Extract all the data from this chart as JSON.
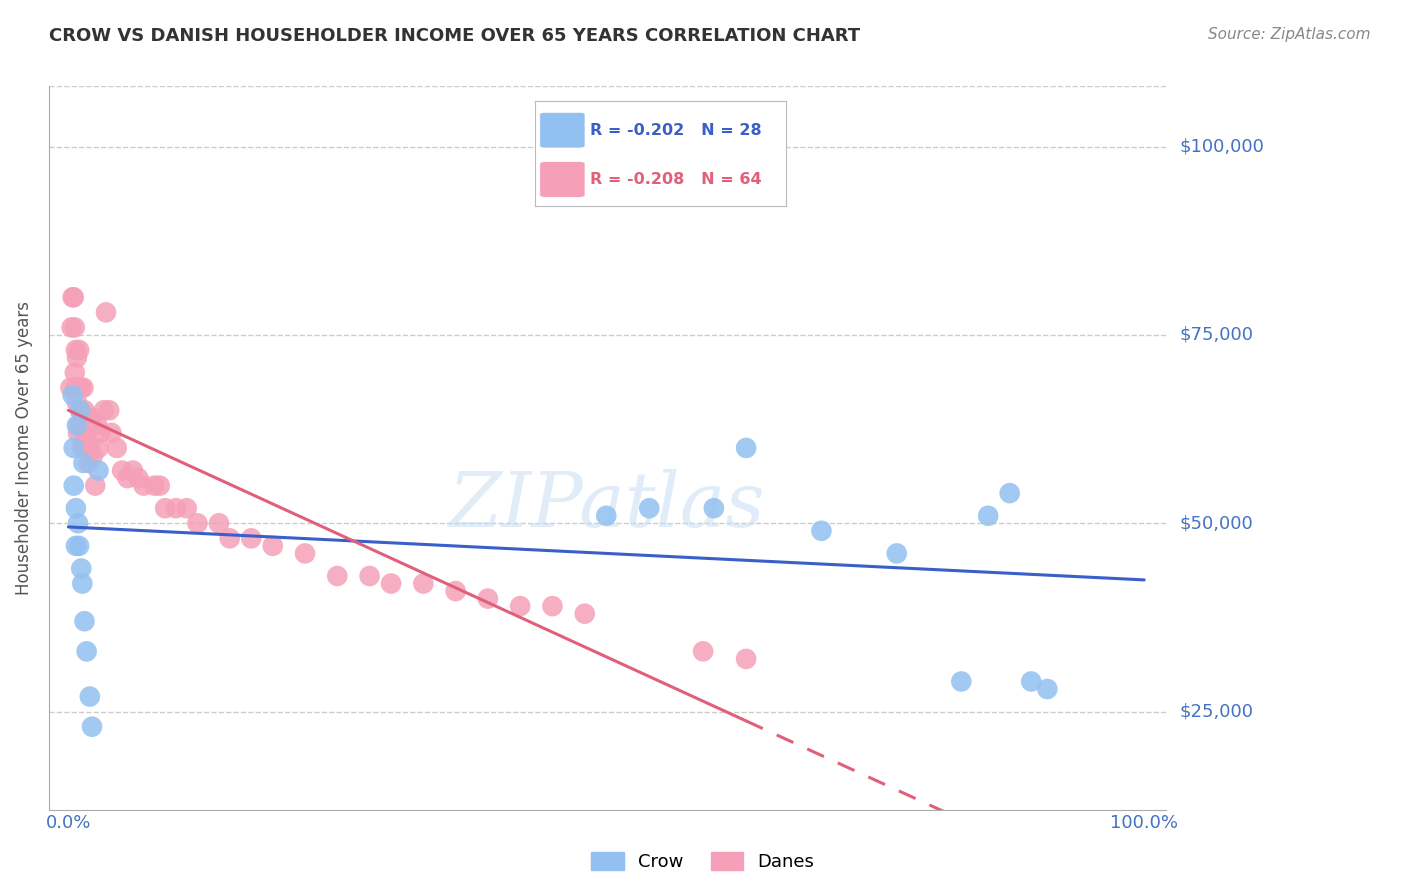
{
  "title": "CROW VS DANISH HOUSEHOLDER INCOME OVER 65 YEARS CORRELATION CHART",
  "source": "Source: ZipAtlas.com",
  "ylabel": "Householder Income Over 65 years",
  "crow_R": "-0.202",
  "crow_N": "28",
  "danes_R": "-0.208",
  "danes_N": "64",
  "crow_color": "#92c0f0",
  "danes_color": "#f5a0b8",
  "crow_line_color": "#3a5fc8",
  "danes_line_color": "#e0607a",
  "background_color": "#ffffff",
  "grid_color": "#cccccc",
  "watermark": "ZIPatlas",
  "crow_x": [
    0.004,
    0.005,
    0.005,
    0.007,
    0.007,
    0.008,
    0.009,
    0.01,
    0.011,
    0.012,
    0.013,
    0.014,
    0.015,
    0.017,
    0.02,
    0.022,
    0.028,
    0.5,
    0.54,
    0.6,
    0.63,
    0.7,
    0.77,
    0.83,
    0.855,
    0.875,
    0.895,
    0.91
  ],
  "crow_y": [
    67000,
    60000,
    55000,
    52000,
    47000,
    63000,
    50000,
    47000,
    65000,
    44000,
    42000,
    58000,
    37000,
    33000,
    27000,
    23000,
    57000,
    51000,
    52000,
    52000,
    60000,
    49000,
    46000,
    29000,
    51000,
    54000,
    29000,
    28000
  ],
  "danes_x": [
    0.002,
    0.003,
    0.004,
    0.005,
    0.006,
    0.006,
    0.007,
    0.007,
    0.008,
    0.008,
    0.009,
    0.009,
    0.01,
    0.01,
    0.011,
    0.012,
    0.013,
    0.014,
    0.014,
    0.015,
    0.015,
    0.016,
    0.017,
    0.018,
    0.019,
    0.02,
    0.022,
    0.023,
    0.025,
    0.027,
    0.028,
    0.03,
    0.033,
    0.035,
    0.038,
    0.04,
    0.045,
    0.05,
    0.055,
    0.06,
    0.065,
    0.07,
    0.08,
    0.085,
    0.09,
    0.1,
    0.11,
    0.12,
    0.14,
    0.15,
    0.17,
    0.19,
    0.22,
    0.25,
    0.28,
    0.3,
    0.33,
    0.36,
    0.39,
    0.42,
    0.45,
    0.48,
    0.59,
    0.63
  ],
  "danes_y": [
    68000,
    76000,
    80000,
    80000,
    70000,
    76000,
    68000,
    73000,
    66000,
    72000,
    62000,
    68000,
    63000,
    73000,
    65000,
    68000,
    60000,
    68000,
    63000,
    62000,
    65000,
    60000,
    62000,
    64000,
    58000,
    60000,
    64000,
    59000,
    55000,
    63000,
    60000,
    62000,
    65000,
    78000,
    65000,
    62000,
    60000,
    57000,
    56000,
    57000,
    56000,
    55000,
    55000,
    55000,
    52000,
    52000,
    52000,
    50000,
    50000,
    48000,
    48000,
    47000,
    46000,
    43000,
    43000,
    42000,
    42000,
    41000,
    40000,
    39000,
    39000,
    38000,
    33000,
    32000
  ],
  "ylim_min": 12000,
  "ylim_max": 108000,
  "xlim_min": -0.018,
  "xlim_max": 1.02,
  "y_ticks": [
    25000,
    50000,
    75000,
    100000
  ],
  "y_tick_labels": [
    "$25,000",
    "$50,000",
    "$75,000",
    "$100,000"
  ],
  "title_fontsize": 13,
  "source_fontsize": 11,
  "tick_label_color": "#4472c4",
  "title_color": "#333333",
  "source_color": "#888888"
}
